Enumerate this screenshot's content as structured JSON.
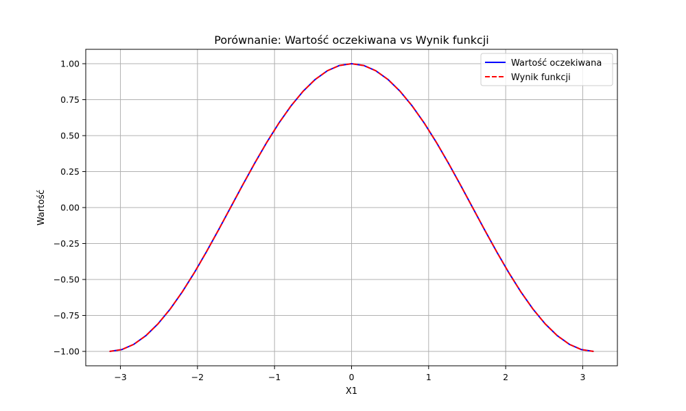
{
  "chart_data": {
    "type": "line",
    "title": "Porównanie: Wartość oczekiwana vs Wynik funkcji",
    "xlabel": "X1",
    "ylabel": "Wartość",
    "xlim": [
      -3.45,
      3.45
    ],
    "ylim": [
      -1.1,
      1.1
    ],
    "grid": true,
    "legend_position": "top-right",
    "xticks": [
      -3,
      -2,
      -1,
      0,
      1,
      2,
      3
    ],
    "xtick_labels": [
      "−3",
      "−2",
      "−1",
      "0",
      "1",
      "2",
      "3"
    ],
    "yticks": [
      -1.0,
      -0.75,
      -0.5,
      -0.25,
      0.0,
      0.25,
      0.5,
      0.75,
      1.0
    ],
    "ytick_labels": [
      "−1.00",
      "−0.75",
      "−0.50",
      "−0.25",
      "0.00",
      "0.25",
      "0.50",
      "0.75",
      "1.00"
    ],
    "x": [
      -3.1416,
      -2.9845,
      -2.8274,
      -2.6704,
      -2.5133,
      -2.3562,
      -2.1991,
      -2.042,
      -1.885,
      -1.7279,
      -1.5708,
      -1.4137,
      -1.2566,
      -1.0996,
      -0.9425,
      -0.7854,
      -0.6283,
      -0.4712,
      -0.3142,
      -0.1571,
      0.0,
      0.1571,
      0.3142,
      0.4712,
      0.6283,
      0.7854,
      0.9425,
      1.0996,
      1.2566,
      1.4137,
      1.5708,
      1.7279,
      1.885,
      2.042,
      2.1991,
      2.3562,
      2.5133,
      2.6704,
      2.8274,
      2.9845,
      3.1416
    ],
    "series": [
      {
        "name": "Wartość oczekiwana",
        "color": "#0000ff",
        "style": "solid",
        "values": [
          -1.0,
          -0.9877,
          -0.9511,
          -0.891,
          -0.809,
          -0.7071,
          -0.5878,
          -0.454,
          -0.309,
          -0.1564,
          0.0,
          0.1564,
          0.309,
          0.454,
          0.5878,
          0.7071,
          0.809,
          0.891,
          0.9511,
          0.9877,
          1.0,
          0.9877,
          0.9511,
          0.891,
          0.809,
          0.7071,
          0.5878,
          0.454,
          0.309,
          0.1564,
          0.0,
          -0.1564,
          -0.309,
          -0.454,
          -0.5878,
          -0.7071,
          -0.809,
          -0.891,
          -0.9511,
          -0.9877,
          -1.0
        ]
      },
      {
        "name": "Wynik funkcji",
        "color": "#ff0000",
        "style": "dashed",
        "values": [
          -1.0,
          -0.9877,
          -0.9511,
          -0.891,
          -0.809,
          -0.7071,
          -0.5878,
          -0.454,
          -0.309,
          -0.1564,
          0.0,
          0.1564,
          0.309,
          0.454,
          0.5878,
          0.7071,
          0.809,
          0.891,
          0.9511,
          0.9877,
          1.0,
          0.9877,
          0.9511,
          0.891,
          0.809,
          0.7071,
          0.5878,
          0.454,
          0.309,
          0.1564,
          0.0,
          -0.1564,
          -0.309,
          -0.454,
          -0.5878,
          -0.7071,
          -0.809,
          -0.891,
          -0.9511,
          -0.9877,
          -1.0
        ]
      }
    ]
  }
}
